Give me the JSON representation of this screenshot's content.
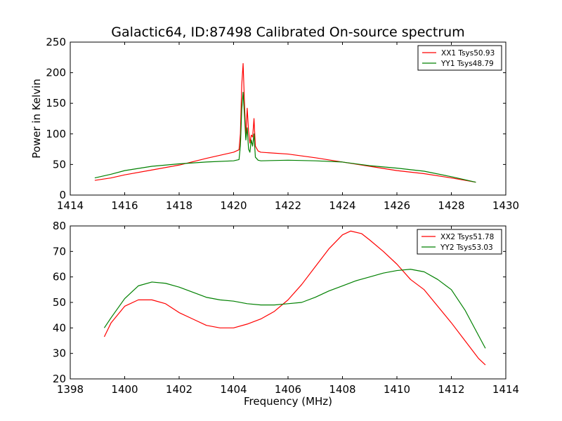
{
  "chart_data": [
    {
      "type": "line",
      "title": "Galactic64, ID:87498 Calibrated On-source spectrum",
      "xlabel": "",
      "ylabel": "Power in Kelvin",
      "xlim": [
        1414,
        1430
      ],
      "ylim": [
        0,
        250
      ],
      "xticks": [
        1414,
        1416,
        1418,
        1420,
        1422,
        1424,
        1426,
        1428,
        1430
      ],
      "yticks": [
        0,
        50,
        100,
        150,
        200,
        250
      ],
      "grid": false,
      "legend_position": "top-right",
      "series": [
        {
          "name": "XX1 Tsys50.93",
          "color": "#ff0000",
          "points": [
            [
              1414.9,
              24
            ],
            [
              1415.5,
              28
            ],
            [
              1416,
              33
            ],
            [
              1417,
              41
            ],
            [
              1418,
              49
            ],
            [
              1419,
              60
            ],
            [
              1419.6,
              66
            ],
            [
              1420.0,
              70
            ],
            [
              1420.2,
              74
            ],
            [
              1420.25,
              100
            ],
            [
              1420.3,
              180
            ],
            [
              1420.35,
              215
            ],
            [
              1420.4,
              150
            ],
            [
              1420.45,
              95
            ],
            [
              1420.5,
              142
            ],
            [
              1420.55,
              105
            ],
            [
              1420.6,
              85
            ],
            [
              1420.65,
              98
            ],
            [
              1420.7,
              95
            ],
            [
              1420.75,
              125
            ],
            [
              1420.8,
              80
            ],
            [
              1420.9,
              72
            ],
            [
              1421,
              70
            ],
            [
              1422,
              67
            ],
            [
              1423,
              61
            ],
            [
              1424,
              54
            ],
            [
              1425,
              47
            ],
            [
              1426,
              40
            ],
            [
              1427,
              35
            ],
            [
              1428,
              28
            ],
            [
              1428.9,
              21
            ]
          ]
        },
        {
          "name": "YY1 Tsys48.79",
          "color": "#008000",
          "points": [
            [
              1414.9,
              28
            ],
            [
              1415.5,
              34
            ],
            [
              1416,
              40
            ],
            [
              1417,
              47
            ],
            [
              1418,
              51
            ],
            [
              1419,
              54
            ],
            [
              1420.0,
              56
            ],
            [
              1420.2,
              58
            ],
            [
              1420.25,
              80
            ],
            [
              1420.3,
              140
            ],
            [
              1420.35,
              168
            ],
            [
              1420.4,
              130
            ],
            [
              1420.45,
              90
            ],
            [
              1420.5,
              110
            ],
            [
              1420.55,
              75
            ],
            [
              1420.6,
              70
            ],
            [
              1420.65,
              90
            ],
            [
              1420.7,
              80
            ],
            [
              1420.75,
              100
            ],
            [
              1420.8,
              62
            ],
            [
              1420.9,
              57
            ],
            [
              1421,
              56
            ],
            [
              1422,
              57
            ],
            [
              1423,
              56
            ],
            [
              1424,
              54
            ],
            [
              1425,
              48
            ],
            [
              1426,
              44
            ],
            [
              1427,
              39
            ],
            [
              1428,
              30
            ],
            [
              1428.9,
              21
            ]
          ]
        }
      ]
    },
    {
      "type": "line",
      "title": "",
      "xlabel": "Frequency (MHz)",
      "ylabel": "",
      "xlim": [
        1398,
        1414
      ],
      "ylim": [
        20,
        80
      ],
      "xticks": [
        1398,
        1400,
        1402,
        1404,
        1406,
        1408,
        1410,
        1412,
        1414
      ],
      "yticks": [
        20,
        30,
        40,
        50,
        60,
        70,
        80
      ],
      "grid": false,
      "legend_position": "top-right",
      "series": [
        {
          "name": "XX2 Tsys51.78",
          "color": "#ff0000",
          "points": [
            [
              1399.25,
              36.5
            ],
            [
              1399.5,
              42
            ],
            [
              1400,
              48.5
            ],
            [
              1400.5,
              51
            ],
            [
              1401,
              51
            ],
            [
              1401.5,
              49.5
            ],
            [
              1402,
              46
            ],
            [
              1402.5,
              43.5
            ],
            [
              1403,
              41
            ],
            [
              1403.5,
              40
            ],
            [
              1404,
              40
            ],
            [
              1404.5,
              41.5
            ],
            [
              1405,
              43.5
            ],
            [
              1405.5,
              46.5
            ],
            [
              1406,
              51
            ],
            [
              1406.5,
              57
            ],
            [
              1407,
              64
            ],
            [
              1407.5,
              71
            ],
            [
              1408,
              76.5
            ],
            [
              1408.3,
              78
            ],
            [
              1408.7,
              77
            ],
            [
              1409,
              74.5
            ],
            [
              1409.5,
              70
            ],
            [
              1410,
              65
            ],
            [
              1410.5,
              59
            ],
            [
              1411,
              55
            ],
            [
              1411.5,
              48.5
            ],
            [
              1412,
              42
            ],
            [
              1412.5,
              35
            ],
            [
              1413,
              28
            ],
            [
              1413.25,
              25.5
            ]
          ]
        },
        {
          "name": "YY2 Tsys53.03",
          "color": "#008000",
          "points": [
            [
              1399.25,
              40
            ],
            [
              1399.5,
              44
            ],
            [
              1400,
              51.5
            ],
            [
              1400.5,
              56.5
            ],
            [
              1401,
              58
            ],
            [
              1401.5,
              57.5
            ],
            [
              1402,
              56
            ],
            [
              1402.5,
              54
            ],
            [
              1403,
              52
            ],
            [
              1403.5,
              51
            ],
            [
              1404,
              50.5
            ],
            [
              1404.5,
              49.5
            ],
            [
              1405,
              49
            ],
            [
              1405.5,
              49
            ],
            [
              1406,
              49.5
            ],
            [
              1406.5,
              50
            ],
            [
              1407,
              52
            ],
            [
              1407.5,
              54.5
            ],
            [
              1408,
              56.5
            ],
            [
              1408.5,
              58.5
            ],
            [
              1409,
              60
            ],
            [
              1409.5,
              61.5
            ],
            [
              1410,
              62.5
            ],
            [
              1410.5,
              63
            ],
            [
              1411,
              62
            ],
            [
              1411.5,
              59
            ],
            [
              1412,
              55
            ],
            [
              1412.5,
              47
            ],
            [
              1413,
              37
            ],
            [
              1413.25,
              32
            ]
          ]
        }
      ]
    }
  ]
}
